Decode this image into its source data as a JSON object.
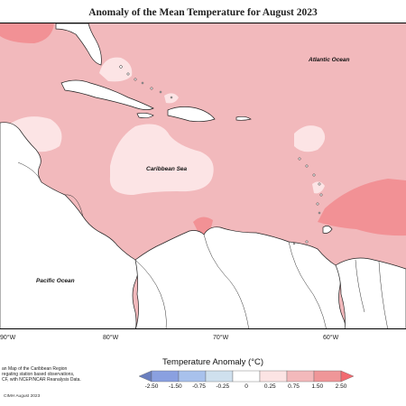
{
  "title": "Anomaly of the Mean Temperature for August 2023",
  "labels": {
    "atlantic": "Atlantic Ocean",
    "caribbean": "Caribbean Sea",
    "pacific": "Pacific Ocean"
  },
  "longitudes": [
    "90°W",
    "80°W",
    "70°W",
    "60°W"
  ],
  "legend": {
    "title": "Temperature Anomaly (°C)",
    "ticks": [
      "-2.50",
      "-1.50",
      "-0.75",
      "-0.25",
      "0",
      "0.25",
      "0.75",
      "1.50",
      "2.50"
    ],
    "colors": [
      "#6a7fbf",
      "#8aa0e0",
      "#a8c1ec",
      "#cfe0ee",
      "#ffffff",
      "#fce4e4",
      "#f3b9bb",
      "#ef9698",
      "#f26a70"
    ]
  },
  "caption": {
    "line1": "an Map of the Caribbean Region",
    "line2": "regating station based observations,",
    "line3": "CF, with NCEP/NCAR Reanalysis Data."
  },
  "credit": "CIMH August 2023",
  "colors": {
    "base_anomaly": "#f2b9bc",
    "high_anomaly": "#f28a8f",
    "low_anomaly": "#fce4e5",
    "land": "#ffffff"
  }
}
